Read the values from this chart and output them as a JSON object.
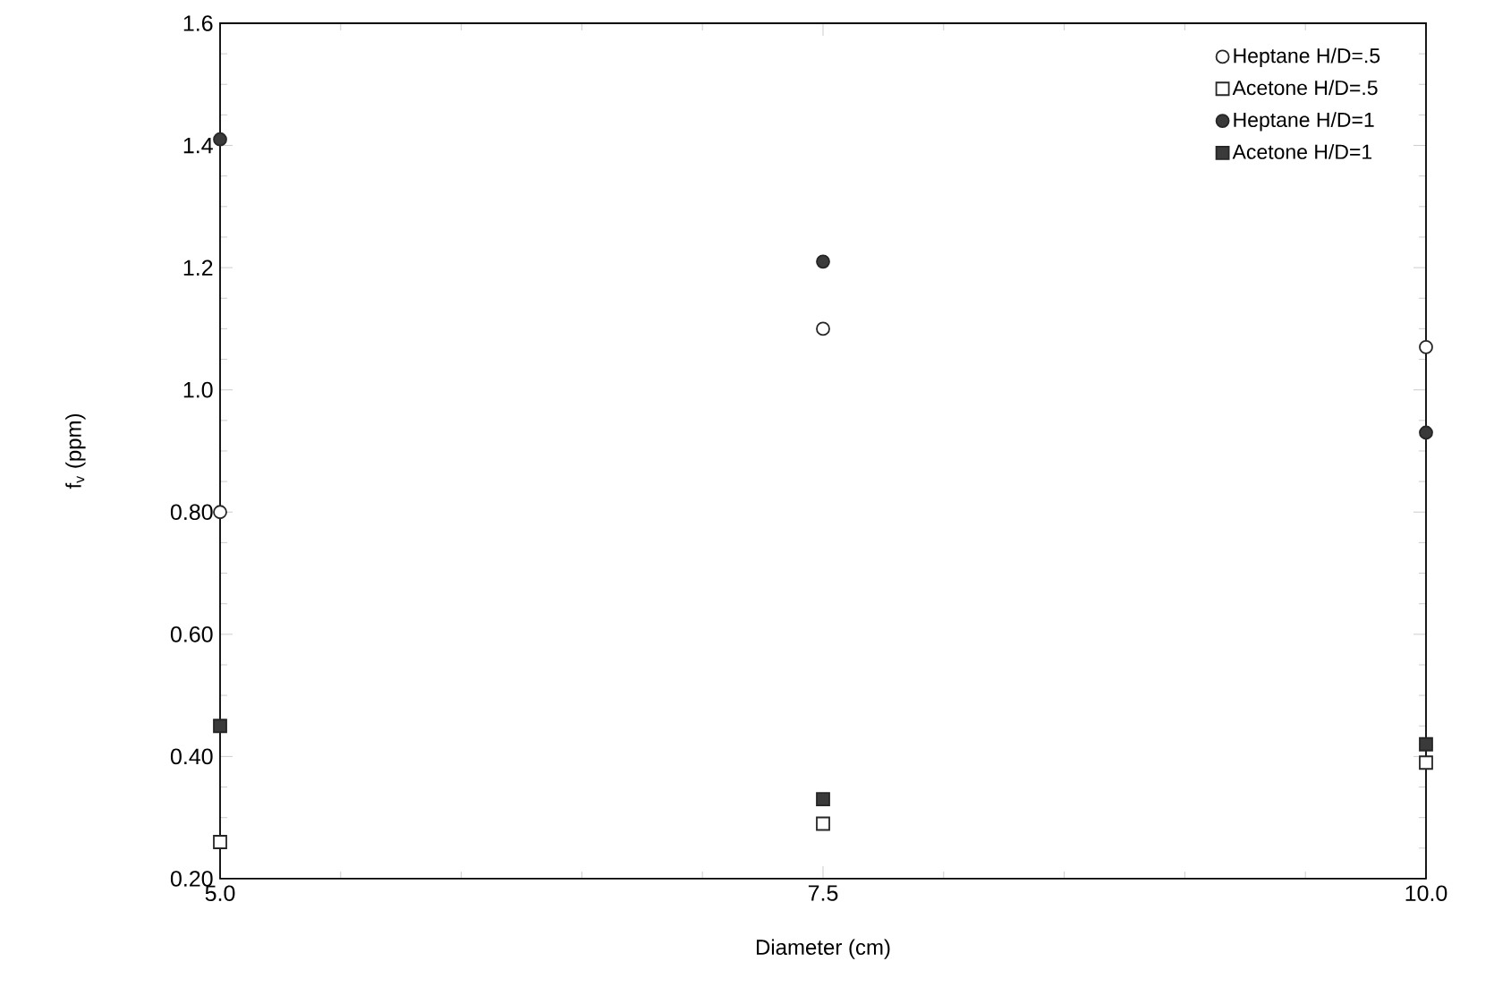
{
  "chart_data": {
    "type": "scatter",
    "xlabel": "Diameter  (cm)",
    "ylabel": "f$_{v}$  (ppm)",
    "x": [
      5.0,
      7.5,
      10.0
    ],
    "xlim": [
      5.0,
      10.0
    ],
    "xticks": [
      {
        "value": 5.0,
        "label": "5.0"
      },
      {
        "value": 7.5,
        "label": "7.5"
      },
      {
        "value": 10.0,
        "label": "10.0"
      }
    ],
    "ylim": [
      0.2,
      1.6
    ],
    "yticks": [
      {
        "value": 0.2,
        "label": "0.20"
      },
      {
        "value": 0.4,
        "label": "0.40"
      },
      {
        "value": 0.6,
        "label": "0.60"
      },
      {
        "value": 0.8,
        "label": "0.80"
      },
      {
        "value": 1.0,
        "label": "1.0"
      },
      {
        "value": 1.2,
        "label": "1.2"
      },
      {
        "value": 1.4,
        "label": "1.4"
      },
      {
        "value": 1.6,
        "label": "1.6"
      }
    ],
    "grid": false,
    "legend": "top right",
    "series": [
      {
        "name": "Heptane  H/D=.5",
        "color": "#ffffff",
        "marker": "circle",
        "values": [
          0.8,
          1.1,
          1.07
        ]
      },
      {
        "name": "Acetone  H/D=.5",
        "color": "#ffffff",
        "marker": "square",
        "values": [
          0.26,
          0.29,
          0.39
        ]
      },
      {
        "name": "Heptane  H/D=1",
        "color": "#3a3a3a",
        "marker": "circle",
        "values": [
          1.41,
          1.21,
          0.93
        ]
      },
      {
        "name": "Acetone  H/D=1",
        "color": "#3a3a3a",
        "marker": "square",
        "values": [
          0.45,
          0.33,
          0.42
        ]
      }
    ]
  }
}
